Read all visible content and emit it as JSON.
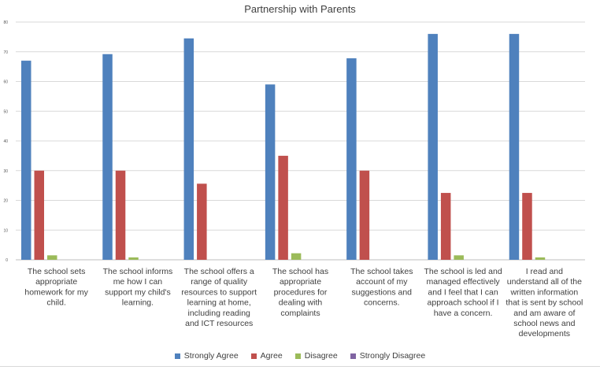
{
  "chart_data": {
    "type": "bar",
    "title": "Partnership with Parents",
    "xlabel": "",
    "ylabel": "",
    "ylim": [
      0,
      80
    ],
    "yticks": [
      0,
      10,
      20,
      30,
      40,
      50,
      60,
      70,
      80
    ],
    "grid": true,
    "legend_position": "bottom",
    "categories": [
      [
        "The school sets",
        "appropriate",
        "homework for my",
        "child."
      ],
      [
        "The school informs",
        "me how I can",
        "support my child's",
        "learning."
      ],
      [
        "The school offers a",
        "range of quality",
        "resources to support",
        "learning at home,",
        "including reading",
        "and ICT resources"
      ],
      [
        "The school has",
        "appropriate",
        "procedures for",
        "dealing with",
        "complaints"
      ],
      [
        "The school takes",
        "account of my",
        "suggestions and",
        "concerns."
      ],
      [
        "The school is led and",
        "managed effectively",
        "and I feel that I can",
        "approach school if I",
        "have a concern."
      ],
      [
        "I read and",
        "understand all of the",
        "written information",
        "that is sent by school",
        "and am aware of",
        "school news and",
        "developments"
      ]
    ],
    "series": [
      {
        "name": "Strongly Agree",
        "color": "#4f81bd",
        "values": [
          67,
          69.2,
          74.5,
          59,
          67.8,
          76,
          76
        ]
      },
      {
        "name": "Agree",
        "color": "#c0504d",
        "values": [
          30,
          30,
          25.6,
          35,
          30,
          22.5,
          22.5
        ]
      },
      {
        "name": "Disagree",
        "color": "#9bbb59",
        "values": [
          1.5,
          0.8,
          0,
          2.2,
          0,
          1.5,
          0.8
        ]
      },
      {
        "name": "Strongly Disagree",
        "color": "#8064a2",
        "values": [
          0,
          0,
          0,
          0,
          0,
          0,
          0
        ]
      }
    ]
  }
}
